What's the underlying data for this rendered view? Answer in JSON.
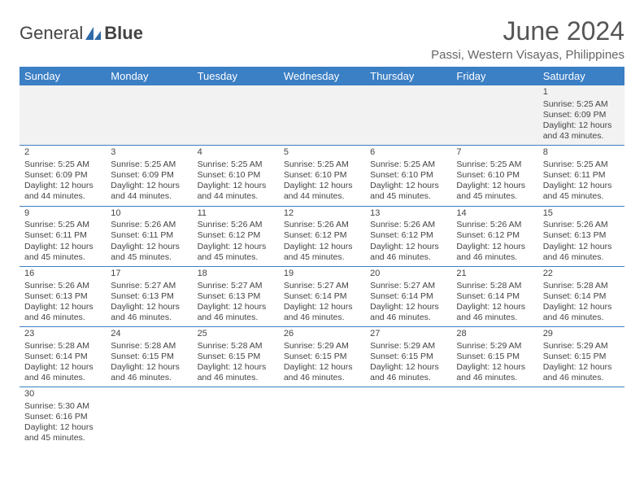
{
  "logo": {
    "part1": "General",
    "part2": "Blue"
  },
  "title": "June 2024",
  "location": "Passi, Western Visayas, Philippines",
  "colors": {
    "header_bg": "#3b7fc4",
    "header_fg": "#ffffff",
    "accent": "#3b7fc4",
    "text": "#444444",
    "blank_bg": "#f2f2f2"
  },
  "day_headers": [
    "Sunday",
    "Monday",
    "Tuesday",
    "Wednesday",
    "Thursday",
    "Friday",
    "Saturday"
  ],
  "weeks": [
    [
      null,
      null,
      null,
      null,
      null,
      null,
      {
        "day": 1,
        "sunrise": "5:25 AM",
        "sunset": "6:09 PM",
        "daylight": "12 hours and 43 minutes."
      }
    ],
    [
      {
        "day": 2,
        "sunrise": "5:25 AM",
        "sunset": "6:09 PM",
        "daylight": "12 hours and 44 minutes."
      },
      {
        "day": 3,
        "sunrise": "5:25 AM",
        "sunset": "6:09 PM",
        "daylight": "12 hours and 44 minutes."
      },
      {
        "day": 4,
        "sunrise": "5:25 AM",
        "sunset": "6:10 PM",
        "daylight": "12 hours and 44 minutes."
      },
      {
        "day": 5,
        "sunrise": "5:25 AM",
        "sunset": "6:10 PM",
        "daylight": "12 hours and 44 minutes."
      },
      {
        "day": 6,
        "sunrise": "5:25 AM",
        "sunset": "6:10 PM",
        "daylight": "12 hours and 45 minutes."
      },
      {
        "day": 7,
        "sunrise": "5:25 AM",
        "sunset": "6:10 PM",
        "daylight": "12 hours and 45 minutes."
      },
      {
        "day": 8,
        "sunrise": "5:25 AM",
        "sunset": "6:11 PM",
        "daylight": "12 hours and 45 minutes."
      }
    ],
    [
      {
        "day": 9,
        "sunrise": "5:25 AM",
        "sunset": "6:11 PM",
        "daylight": "12 hours and 45 minutes."
      },
      {
        "day": 10,
        "sunrise": "5:26 AM",
        "sunset": "6:11 PM",
        "daylight": "12 hours and 45 minutes."
      },
      {
        "day": 11,
        "sunrise": "5:26 AM",
        "sunset": "6:12 PM",
        "daylight": "12 hours and 45 minutes."
      },
      {
        "day": 12,
        "sunrise": "5:26 AM",
        "sunset": "6:12 PM",
        "daylight": "12 hours and 45 minutes."
      },
      {
        "day": 13,
        "sunrise": "5:26 AM",
        "sunset": "6:12 PM",
        "daylight": "12 hours and 46 minutes."
      },
      {
        "day": 14,
        "sunrise": "5:26 AM",
        "sunset": "6:12 PM",
        "daylight": "12 hours and 46 minutes."
      },
      {
        "day": 15,
        "sunrise": "5:26 AM",
        "sunset": "6:13 PM",
        "daylight": "12 hours and 46 minutes."
      }
    ],
    [
      {
        "day": 16,
        "sunrise": "5:26 AM",
        "sunset": "6:13 PM",
        "daylight": "12 hours and 46 minutes."
      },
      {
        "day": 17,
        "sunrise": "5:27 AM",
        "sunset": "6:13 PM",
        "daylight": "12 hours and 46 minutes."
      },
      {
        "day": 18,
        "sunrise": "5:27 AM",
        "sunset": "6:13 PM",
        "daylight": "12 hours and 46 minutes."
      },
      {
        "day": 19,
        "sunrise": "5:27 AM",
        "sunset": "6:14 PM",
        "daylight": "12 hours and 46 minutes."
      },
      {
        "day": 20,
        "sunrise": "5:27 AM",
        "sunset": "6:14 PM",
        "daylight": "12 hours and 46 minutes."
      },
      {
        "day": 21,
        "sunrise": "5:28 AM",
        "sunset": "6:14 PM",
        "daylight": "12 hours and 46 minutes."
      },
      {
        "day": 22,
        "sunrise": "5:28 AM",
        "sunset": "6:14 PM",
        "daylight": "12 hours and 46 minutes."
      }
    ],
    [
      {
        "day": 23,
        "sunrise": "5:28 AM",
        "sunset": "6:14 PM",
        "daylight": "12 hours and 46 minutes."
      },
      {
        "day": 24,
        "sunrise": "5:28 AM",
        "sunset": "6:15 PM",
        "daylight": "12 hours and 46 minutes."
      },
      {
        "day": 25,
        "sunrise": "5:28 AM",
        "sunset": "6:15 PM",
        "daylight": "12 hours and 46 minutes."
      },
      {
        "day": 26,
        "sunrise": "5:29 AM",
        "sunset": "6:15 PM",
        "daylight": "12 hours and 46 minutes."
      },
      {
        "day": 27,
        "sunrise": "5:29 AM",
        "sunset": "6:15 PM",
        "daylight": "12 hours and 46 minutes."
      },
      {
        "day": 28,
        "sunrise": "5:29 AM",
        "sunset": "6:15 PM",
        "daylight": "12 hours and 46 minutes."
      },
      {
        "day": 29,
        "sunrise": "5:29 AM",
        "sunset": "6:15 PM",
        "daylight": "12 hours and 46 minutes."
      }
    ],
    [
      {
        "day": 30,
        "sunrise": "5:30 AM",
        "sunset": "6:16 PM",
        "daylight": "12 hours and 45 minutes."
      },
      null,
      null,
      null,
      null,
      null,
      null
    ]
  ],
  "labels": {
    "sunrise": "Sunrise:",
    "sunset": "Sunset:",
    "daylight": "Daylight:"
  }
}
